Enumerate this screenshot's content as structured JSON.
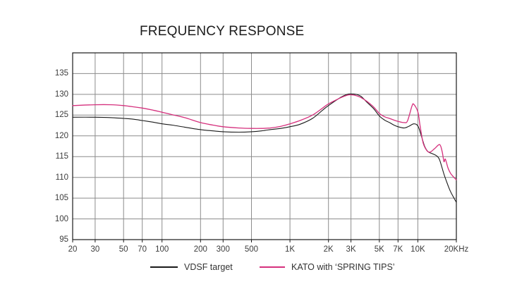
{
  "chart_data": {
    "type": "line",
    "title": "FREQUENCY RESPONSE",
    "xlabel": "",
    "ylabel": "",
    "grid": true,
    "legend_position": "bottom",
    "grid_color": "#8c8c8c",
    "border_color": "#1a1a1a",
    "x_axis": {
      "scale": "log",
      "min": 20,
      "max": 20000,
      "ticks": [
        {
          "v": 20,
          "label": "20"
        },
        {
          "v": 30,
          "label": "30"
        },
        {
          "v": 50,
          "label": "50"
        },
        {
          "v": 70,
          "label": "70"
        },
        {
          "v": 100,
          "label": "100"
        },
        {
          "v": 200,
          "label": "200"
        },
        {
          "v": 300,
          "label": "300"
        },
        {
          "v": 500,
          "label": "500"
        },
        {
          "v": 1000,
          "label": "1K"
        },
        {
          "v": 2000,
          "label": "2K"
        },
        {
          "v": 3000,
          "label": "3K"
        },
        {
          "v": 5000,
          "label": "5K"
        },
        {
          "v": 7000,
          "label": "7K"
        },
        {
          "v": 10000,
          "label": "10K"
        },
        {
          "v": 20000,
          "label": "20KHz"
        }
      ]
    },
    "y_axis": {
      "scale": "linear",
      "min": 95,
      "max": 140,
      "gridline_step": 5,
      "ticks": [
        {
          "v": 95,
          "label": "95"
        },
        {
          "v": 100,
          "label": "100"
        },
        {
          "v": 105,
          "label": "105"
        },
        {
          "v": 110,
          "label": "110"
        },
        {
          "v": 115,
          "label": "115"
        },
        {
          "v": 120,
          "label": "120"
        },
        {
          "v": 125,
          "label": "125"
        },
        {
          "v": 130,
          "label": "130"
        },
        {
          "v": 135,
          "label": "135"
        }
      ]
    },
    "series": [
      {
        "name": "VDSF target",
        "color": "#1a1a1a",
        "stroke_width": 1.1,
        "points": [
          [
            20,
            124.5
          ],
          [
            30,
            124.5
          ],
          [
            40,
            124.4
          ],
          [
            50,
            124.2
          ],
          [
            60,
            124.0
          ],
          [
            70,
            123.7
          ],
          [
            85,
            123.3
          ],
          [
            100,
            122.9
          ],
          [
            120,
            122.6
          ],
          [
            150,
            122.1
          ],
          [
            200,
            121.5
          ],
          [
            250,
            121.2
          ],
          [
            300,
            121.0
          ],
          [
            400,
            120.9
          ],
          [
            500,
            121.0
          ],
          [
            600,
            121.2
          ],
          [
            700,
            121.5
          ],
          [
            850,
            121.8
          ],
          [
            1000,
            122.2
          ],
          [
            1200,
            122.8
          ],
          [
            1500,
            124.2
          ],
          [
            1800,
            126.2
          ],
          [
            2000,
            127.3
          ],
          [
            2500,
            129.3
          ],
          [
            2800,
            130.0
          ],
          [
            3000,
            130.1
          ],
          [
            3300,
            130.0
          ],
          [
            3600,
            129.5
          ],
          [
            4000,
            128.1
          ],
          [
            4500,
            126.6
          ],
          [
            5000,
            124.8
          ],
          [
            5500,
            123.8
          ],
          [
            6000,
            123.2
          ],
          [
            6500,
            122.6
          ],
          [
            7000,
            122.2
          ],
          [
            7800,
            121.9
          ],
          [
            8500,
            122.3
          ],
          [
            9300,
            122.9
          ],
          [
            10000,
            122.4
          ],
          [
            10600,
            120.2
          ],
          [
            11300,
            117.5
          ],
          [
            12000,
            116.2
          ],
          [
            13000,
            115.7
          ],
          [
            14000,
            115.2
          ],
          [
            14800,
            114.2
          ],
          [
            16000,
            110.8
          ],
          [
            17000,
            108.5
          ],
          [
            18000,
            106.6
          ],
          [
            19000,
            105.2
          ],
          [
            20000,
            104.0
          ]
        ]
      },
      {
        "name": "KATO with ‘SPRING TIPS’",
        "color": "#d5307d",
        "stroke_width": 1.3,
        "points": [
          [
            20,
            127.3
          ],
          [
            30,
            127.5
          ],
          [
            40,
            127.5
          ],
          [
            50,
            127.3
          ],
          [
            60,
            127.0
          ],
          [
            70,
            126.7
          ],
          [
            85,
            126.2
          ],
          [
            100,
            125.7
          ],
          [
            120,
            125.1
          ],
          [
            150,
            124.4
          ],
          [
            200,
            123.2
          ],
          [
            250,
            122.6
          ],
          [
            300,
            122.2
          ],
          [
            400,
            121.9
          ],
          [
            500,
            121.8
          ],
          [
            600,
            121.8
          ],
          [
            700,
            121.9
          ],
          [
            850,
            122.3
          ],
          [
            1000,
            122.9
          ],
          [
            1200,
            123.7
          ],
          [
            1500,
            125.0
          ],
          [
            1800,
            126.7
          ],
          [
            2000,
            127.7
          ],
          [
            2500,
            129.2
          ],
          [
            2800,
            129.8
          ],
          [
            3000,
            129.9
          ],
          [
            3300,
            129.7
          ],
          [
            3600,
            129.2
          ],
          [
            4000,
            128.3
          ],
          [
            4500,
            127.0
          ],
          [
            5000,
            125.4
          ],
          [
            5500,
            124.6
          ],
          [
            6000,
            124.2
          ],
          [
            6500,
            123.8
          ],
          [
            7000,
            123.5
          ],
          [
            7800,
            123.2
          ],
          [
            8300,
            123.6
          ],
          [
            9000,
            127.2
          ],
          [
            9300,
            127.6
          ],
          [
            10000,
            125.8
          ],
          [
            10400,
            122.5
          ],
          [
            11000,
            118.3
          ],
          [
            11800,
            116.4
          ],
          [
            12500,
            116.1
          ],
          [
            13500,
            116.9
          ],
          [
            14800,
            117.9
          ],
          [
            15500,
            116.2
          ],
          [
            16000,
            113.8
          ],
          [
            16400,
            114.4
          ],
          [
            17200,
            112.3
          ],
          [
            18000,
            111.0
          ],
          [
            19000,
            110.1
          ],
          [
            20000,
            109.4
          ]
        ]
      }
    ]
  }
}
